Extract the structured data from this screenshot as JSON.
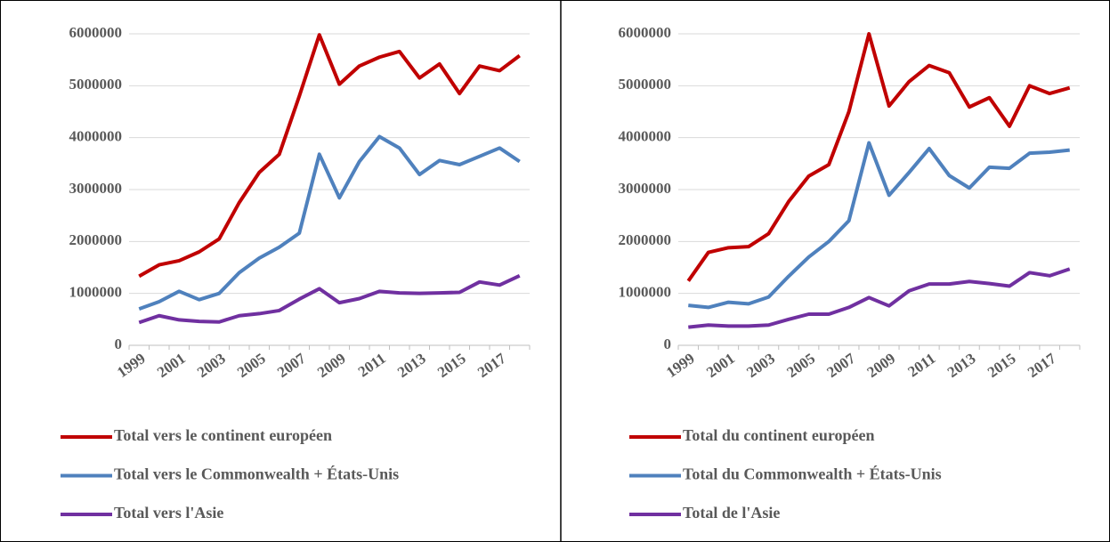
{
  "chart_data": [
    {
      "type": "line",
      "categories": [
        "1999",
        null,
        "2001",
        null,
        "2003",
        null,
        "2005",
        null,
        "2007",
        null,
        "2009",
        null,
        "2011",
        null,
        "2013",
        null,
        "2015",
        null,
        "2017",
        null
      ],
      "ylim": [
        0,
        6000000
      ],
      "yticks": [
        0,
        1000000,
        2000000,
        3000000,
        4000000,
        5000000,
        6000000
      ],
      "grid": true,
      "legend": "bottom",
      "series": [
        {
          "name": "Total vers le continent européen",
          "color": "#c00000",
          "values": [
            1330000,
            1550000,
            1630000,
            1800000,
            2050000,
            2750000,
            3330000,
            3680000,
            4800000,
            5980000,
            5030000,
            5380000,
            5550000,
            5660000,
            5150000,
            5420000,
            4850000,
            5380000,
            5290000,
            5580000
          ]
        },
        {
          "name": "Total vers le Commonwealth + États-Unis",
          "color": "#4f81bd",
          "values": [
            700000,
            840000,
            1040000,
            880000,
            1000000,
            1400000,
            1680000,
            1890000,
            2160000,
            3680000,
            2840000,
            3540000,
            4020000,
            3800000,
            3290000,
            3560000,
            3480000,
            3640000,
            3800000,
            3540000
          ]
        },
        {
          "name": "Total vers l'Asie",
          "color": "#7030a0",
          "values": [
            440000,
            570000,
            490000,
            460000,
            450000,
            570000,
            610000,
            670000,
            890000,
            1090000,
            820000,
            900000,
            1040000,
            1010000,
            1000000,
            1010000,
            1020000,
            1220000,
            1160000,
            1340000
          ]
        }
      ]
    },
    {
      "type": "line",
      "categories": [
        "1999",
        null,
        "2001",
        null,
        "2003",
        null,
        "2005",
        null,
        "2007",
        null,
        "2009",
        null,
        "2011",
        null,
        "2013",
        null,
        "2015",
        null,
        "2017",
        null
      ],
      "ylim": [
        0,
        6000000
      ],
      "yticks": [
        0,
        1000000,
        2000000,
        3000000,
        4000000,
        5000000,
        6000000
      ],
      "grid": true,
      "legend": "bottom",
      "series": [
        {
          "name": "Total du continent européen",
          "color": "#c00000",
          "values": [
            1240000,
            1790000,
            1880000,
            1900000,
            2150000,
            2770000,
            3260000,
            3480000,
            4500000,
            6000000,
            4610000,
            5080000,
            5390000,
            5250000,
            4590000,
            4770000,
            4220000,
            5000000,
            4850000,
            4960000
          ]
        },
        {
          "name": "Total du Commonwealth + États-Unis",
          "color": "#4f81bd",
          "values": [
            770000,
            730000,
            830000,
            800000,
            930000,
            1330000,
            1700000,
            2000000,
            2400000,
            3900000,
            2890000,
            3330000,
            3790000,
            3270000,
            3030000,
            3430000,
            3410000,
            3700000,
            3720000,
            3760000
          ]
        },
        {
          "name": "Total de l'Asie",
          "color": "#7030a0",
          "values": [
            350000,
            390000,
            370000,
            370000,
            390000,
            500000,
            600000,
            600000,
            730000,
            920000,
            760000,
            1050000,
            1180000,
            1180000,
            1230000,
            1190000,
            1140000,
            1400000,
            1340000,
            1470000
          ]
        }
      ]
    }
  ]
}
